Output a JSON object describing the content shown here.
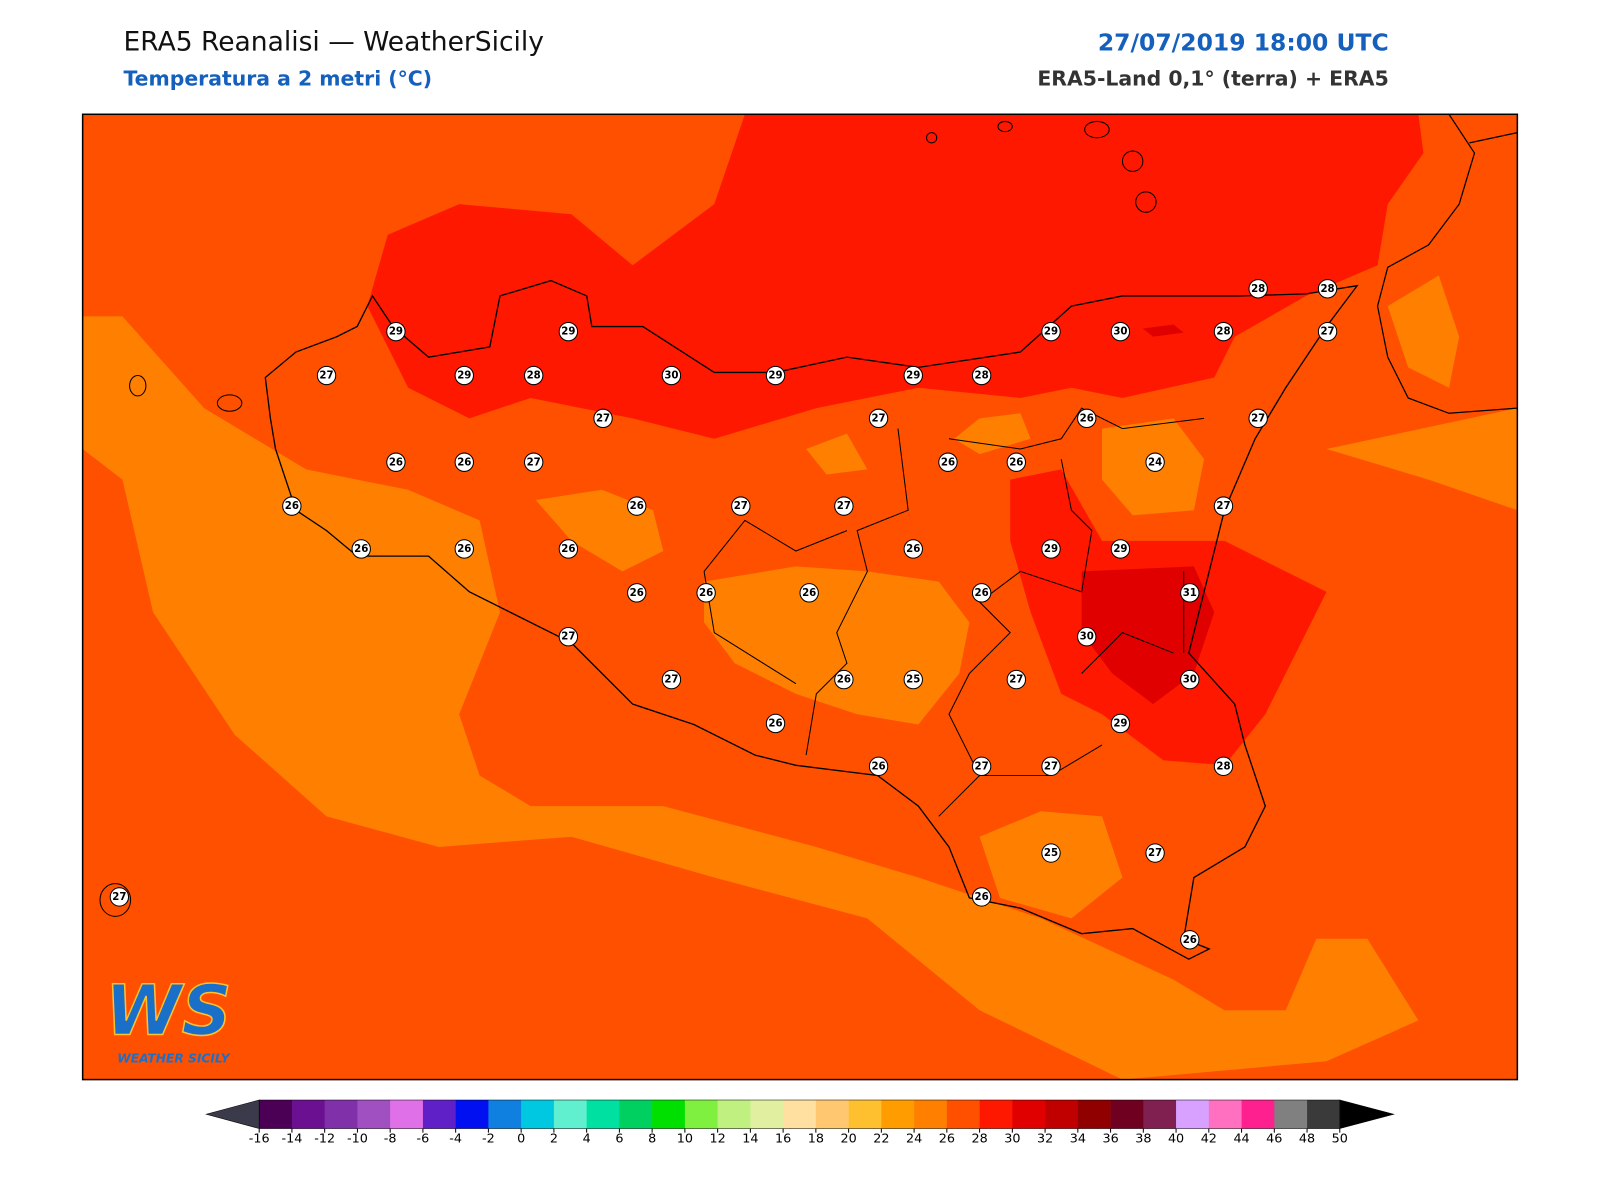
{
  "header": {
    "title": "ERA5 Reanalisi — WeatherSicily",
    "subtitle": "Temperatura a 2 metri (°C)",
    "date": "27/07/2019 18:00 UTC",
    "source": "ERA5-Land 0,1° (terra) + ERA5"
  },
  "stations": [
    29,
    29,
    29,
    30,
    28,
    27,
    28,
    28,
    27,
    29,
    28,
    30,
    29,
    29,
    28,
    27,
    27,
    26,
    27,
    26,
    26,
    27,
    26,
    26,
    24,
    26,
    26,
    27,
    27,
    27,
    26,
    26,
    26,
    26,
    29,
    29,
    26,
    26,
    26,
    26,
    31,
    27,
    30,
    27,
    26,
    25,
    27,
    30,
    26,
    29,
    26,
    27,
    27,
    28,
    25,
    27,
    27,
    26,
    26
  ],
  "colorbar": {
    "ticks": [
      -16,
      -14,
      -12,
      -10,
      -8,
      -6,
      -4,
      -2,
      0,
      2,
      4,
      6,
      8,
      10,
      12,
      14,
      16,
      18,
      20,
      22,
      24,
      26,
      28,
      30,
      32,
      34,
      36,
      38,
      40,
      42,
      44,
      46,
      48,
      50
    ],
    "colors": [
      "#4b0055",
      "#6a1090",
      "#8030a8",
      "#a050c0",
      "#e070e8",
      "#6020c8",
      "#0010f0",
      "#1080e0",
      "#00c8e0",
      "#60f0d0",
      "#00e0a0",
      "#00d060",
      "#00e000",
      "#80f040",
      "#c0f080",
      "#e0f0a0",
      "#ffe0a0",
      "#ffc870",
      "#ffc030",
      "#ff9c00",
      "#ff8000",
      "#ff5000",
      "#ff1800",
      "#e00000",
      "#c00000",
      "#900000",
      "#700020",
      "#802050",
      "#d8a0ff",
      "#ff70c0",
      "#ff2090",
      "#808080",
      "#3a3a3a"
    ],
    "under_color": "#3a3a4a",
    "over_color": "#000000"
  },
  "logo": {
    "letters": "WS",
    "text": "WEATHER SICILY"
  }
}
